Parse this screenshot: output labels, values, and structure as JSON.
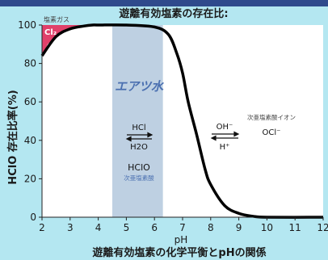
{
  "page": {
    "banner": "",
    "footer": "遊離有効塩素の化学平衡とpHの関係"
  },
  "chart_data": {
    "type": "line",
    "title": "遊離有効塩素の存在比:",
    "xlabel": "pH",
    "ylabel": "HClO 存在比率(%)",
    "xlim": [
      2,
      12
    ],
    "ylim": [
      0,
      100
    ],
    "x_ticks": [
      "2",
      "3",
      "4",
      "5",
      "6",
      "7",
      "8",
      "9",
      "10",
      "11",
      "12"
    ],
    "y_ticks": [
      "0",
      "20",
      "40",
      "60",
      "80",
      "100"
    ],
    "series": [
      {
        "x": [
          2,
          2.5,
          3,
          3.5,
          3.8,
          4,
          5,
          6,
          6.5,
          6.8,
          7,
          7.2,
          7.5,
          7.8,
          8,
          8.5,
          9,
          9.5,
          10,
          12
        ],
        "y": [
          84,
          94,
          98,
          99.5,
          100,
          100,
          100,
          99,
          95,
          85,
          75,
          60,
          43,
          25,
          17,
          6,
          2,
          0.5,
          0,
          0
        ]
      }
    ],
    "cl2_region": {
      "label_main": "Cl₂",
      "label_sub": "塩素ガス",
      "x": [
        2,
        2.2,
        2.5,
        3,
        3.5,
        3.8
      ],
      "y": [
        84,
        90,
        94,
        98,
        99.5,
        100
      ],
      "color": "#e0406a"
    },
    "band": {
      "x_range": [
        4.5,
        6.3
      ],
      "label": "エアツ水",
      "color": "#a8c0d8"
    },
    "annotations": {
      "hcl": "HCl",
      "h2o": "H2O",
      "hclo": "HClO",
      "hclo_sub": "次亜塩素酸",
      "oh": "OH⁻",
      "hplus": "H⁺",
      "ocl_sub": "次亜塩素酸イオン",
      "ocl": "OCl⁻"
    },
    "grid": false,
    "colors": {
      "curve": "#000000",
      "plot_bg": "#ffffff",
      "page_bg": "#b4e7f1",
      "banner": "#2f4a8c",
      "band_text": "#4a6fb0"
    }
  }
}
